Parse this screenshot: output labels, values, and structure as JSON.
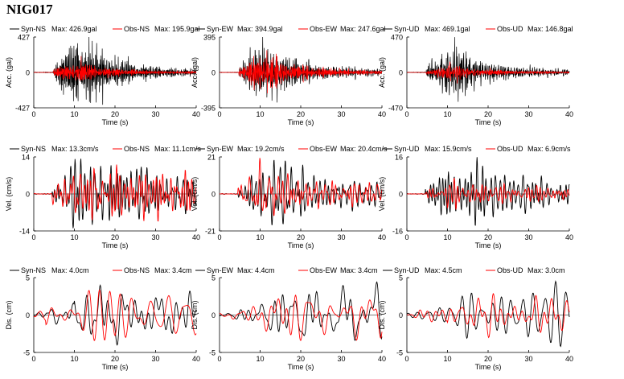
{
  "title": "NIG017",
  "colors": {
    "syn": "#000000",
    "obs": "#ff0000"
  },
  "chart_data": [
    {
      "type": "line",
      "component": "NS",
      "quantity": "acc",
      "legend": [
        {
          "name": "Syn-NS",
          "max": "Max: 426.9gal"
        },
        {
          "name": "Obs-NS",
          "max": "Max: 195.9gal"
        }
      ],
      "xlabel": "Time (s)",
      "ylabel": "Acc. (gal)",
      "x_ticks": [
        "0",
        "10",
        "20",
        "30",
        "40"
      ],
      "xlim": [
        0,
        40
      ],
      "y_ticks": [
        "427",
        "0",
        "-427"
      ],
      "ylim": [
        -427,
        427
      ],
      "series": [
        {
          "name": "Syn-NS",
          "max": 426.9
        },
        {
          "name": "Obs-NS",
          "max": 195.9
        }
      ]
    },
    {
      "type": "line",
      "component": "EW",
      "quantity": "acc",
      "legend": [
        {
          "name": "Syn-EW",
          "max": "Max: 394.9gal"
        },
        {
          "name": "Obs-EW",
          "max": "Max: 247.6gal"
        }
      ],
      "xlabel": "Time (s)",
      "ylabel": "Acc. (gal)",
      "x_ticks": [
        "0",
        "10",
        "20",
        "30",
        "40"
      ],
      "xlim": [
        0,
        40
      ],
      "y_ticks": [
        "395",
        "0",
        "-395"
      ],
      "ylim": [
        -395,
        395
      ],
      "series": [
        {
          "name": "Syn-EW",
          "max": 394.9
        },
        {
          "name": "Obs-EW",
          "max": 247.6
        }
      ]
    },
    {
      "type": "line",
      "component": "UD",
      "quantity": "acc",
      "legend": [
        {
          "name": "Syn-UD",
          "max": "Max: 469.1gal"
        },
        {
          "name": "Obs-UD",
          "max": "Max: 146.8gal"
        }
      ],
      "xlabel": "Time (s)",
      "ylabel": "Acc. (gal)",
      "x_ticks": [
        "0",
        "10",
        "20",
        "30",
        "40"
      ],
      "xlim": [
        0,
        40
      ],
      "y_ticks": [
        "470",
        "0",
        "-470"
      ],
      "ylim": [
        -470,
        470
      ],
      "series": [
        {
          "name": "Syn-UD",
          "max": 469.1
        },
        {
          "name": "Obs-UD",
          "max": 146.8
        }
      ]
    },
    {
      "type": "line",
      "component": "NS",
      "quantity": "vel",
      "legend": [
        {
          "name": "Syn-NS",
          "max": "Max: 13.3cm/s"
        },
        {
          "name": "Obs-NS",
          "max": "Max: 11.1cm/s"
        }
      ],
      "xlabel": "Time (s)",
      "ylabel": "Vel. (cm/s)",
      "x_ticks": [
        "0",
        "10",
        "20",
        "30",
        "40"
      ],
      "xlim": [
        0,
        40
      ],
      "y_ticks": [
        "14",
        "0",
        "-14"
      ],
      "ylim": [
        -14,
        14
      ],
      "series": [
        {
          "name": "Syn-NS",
          "max": 13.3
        },
        {
          "name": "Obs-NS",
          "max": 11.1
        }
      ]
    },
    {
      "type": "line",
      "component": "EW",
      "quantity": "vel",
      "legend": [
        {
          "name": "Syn-EW",
          "max": "Max: 19.2cm/s"
        },
        {
          "name": "Obs-EW",
          "max": "Max: 20.4cm/s"
        }
      ],
      "xlabel": "Time (s)",
      "ylabel": "Vel. (cm/s)",
      "x_ticks": [
        "0",
        "10",
        "20",
        "30",
        "40"
      ],
      "xlim": [
        0,
        40
      ],
      "y_ticks": [
        "21",
        "0",
        "-21"
      ],
      "ylim": [
        -21,
        21
      ],
      "series": [
        {
          "name": "Syn-EW",
          "max": 19.2
        },
        {
          "name": "Obs-EW",
          "max": 20.4
        }
      ]
    },
    {
      "type": "line",
      "component": "UD",
      "quantity": "vel",
      "legend": [
        {
          "name": "Syn-UD",
          "max": "Max: 15.9cm/s"
        },
        {
          "name": "Obs-UD",
          "max": "Max: 6.9cm/s"
        }
      ],
      "xlabel": "Time (s)",
      "ylabel": "Vel. (cm/s)",
      "x_ticks": [
        "0",
        "10",
        "20",
        "30",
        "40"
      ],
      "xlim": [
        0,
        40
      ],
      "y_ticks": [
        "16",
        "0",
        "-16"
      ],
      "ylim": [
        -16,
        16
      ],
      "series": [
        {
          "name": "Syn-UD",
          "max": 15.9
        },
        {
          "name": "Obs-UD",
          "max": 6.9
        }
      ]
    },
    {
      "type": "line",
      "component": "NS",
      "quantity": "dis",
      "legend": [
        {
          "name": "Syn-NS",
          "max": "Max: 4.0cm"
        },
        {
          "name": "Obs-NS",
          "max": "Max: 3.4cm"
        }
      ],
      "xlabel": "Time (s)",
      "ylabel": "Dis. (cm)",
      "x_ticks": [
        "0",
        "10",
        "20",
        "30",
        "40"
      ],
      "xlim": [
        0,
        40
      ],
      "y_ticks": [
        "5",
        "0",
        "-5"
      ],
      "ylim": [
        -5,
        5
      ],
      "series": [
        {
          "name": "Syn-NS",
          "max": 4.0
        },
        {
          "name": "Obs-NS",
          "max": 3.4
        }
      ]
    },
    {
      "type": "line",
      "component": "EW",
      "quantity": "dis",
      "legend": [
        {
          "name": "Syn-EW",
          "max": "Max: 4.4cm"
        },
        {
          "name": "Obs-EW",
          "max": "Max: 3.4cm"
        }
      ],
      "xlabel": "Time (s)",
      "ylabel": "Dis. (cm)",
      "x_ticks": [
        "0",
        "10",
        "20",
        "30",
        "40"
      ],
      "xlim": [
        0,
        40
      ],
      "y_ticks": [
        "5",
        "0",
        "-5"
      ],
      "ylim": [
        -5,
        5
      ],
      "series": [
        {
          "name": "Syn-EW",
          "max": 4.4
        },
        {
          "name": "Obs-EW",
          "max": 3.4
        }
      ]
    },
    {
      "type": "line",
      "component": "UD",
      "quantity": "dis",
      "legend": [
        {
          "name": "Syn-UD",
          "max": "Max: 4.5cm"
        },
        {
          "name": "Obs-UD",
          "max": "Max: 3.0cm"
        }
      ],
      "xlabel": "Time (s)",
      "ylabel": "Dis. (cm)",
      "x_ticks": [
        "0",
        "10",
        "20",
        "30",
        "40"
      ],
      "xlim": [
        0,
        40
      ],
      "y_ticks": [
        "5",
        "0",
        "-5"
      ],
      "ylim": [
        -5,
        5
      ],
      "series": [
        {
          "name": "Syn-UD",
          "max": 4.5
        },
        {
          "name": "Obs-UD",
          "max": 3.0
        }
      ]
    }
  ]
}
